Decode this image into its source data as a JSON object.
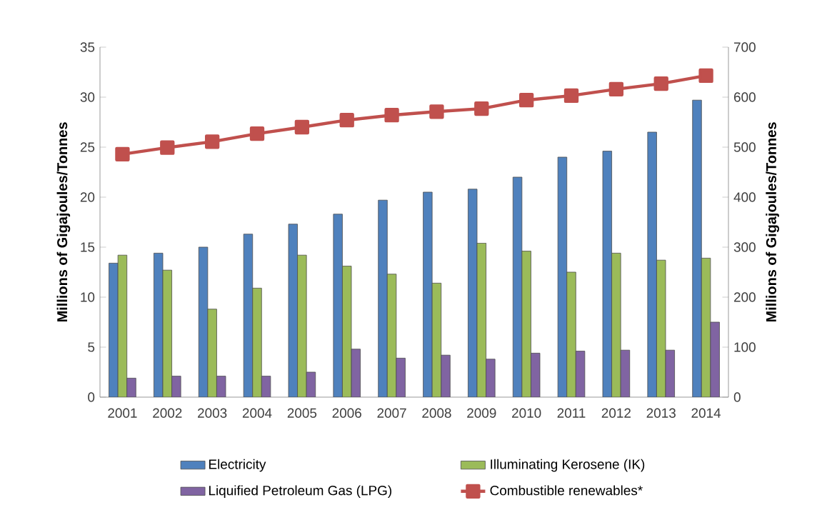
{
  "chart_data": {
    "type": "bar",
    "categories": [
      "2001",
      "2002",
      "2003",
      "2004",
      "2005",
      "2006",
      "2007",
      "2008",
      "2009",
      "2010",
      "2011",
      "2012",
      "2013",
      "2014"
    ],
    "ylabel": "Millions of Gigajoules/Tonnes",
    "y2label": "Millions of Gigajoules/Tonnes",
    "ylim": [
      0,
      35
    ],
    "yticks": [
      0,
      5,
      10,
      15,
      20,
      25,
      30,
      35
    ],
    "y2lim": [
      0,
      700
    ],
    "y2ticks": [
      0,
      100,
      200,
      300,
      400,
      500,
      600,
      700
    ],
    "series": [
      {
        "name": "Electricity",
        "color": "#4f81bd",
        "values": [
          13.4,
          14.4,
          15.0,
          16.3,
          17.3,
          18.3,
          19.7,
          20.5,
          20.8,
          22.0,
          24.0,
          24.6,
          26.5,
          29.7
        ]
      },
      {
        "name": "Illuminating Kerosene (IK)",
        "color": "#9bbb59",
        "values": [
          14.2,
          12.7,
          8.8,
          10.9,
          14.2,
          13.1,
          12.3,
          11.4,
          15.4,
          14.6,
          12.5,
          14.4,
          13.7,
          13.9
        ]
      },
      {
        "name": "Liquified Petroleum Gas (LPG)",
        "color": "#8064a2",
        "values": [
          1.9,
          2.1,
          2.1,
          2.1,
          2.5,
          4.8,
          3.9,
          4.2,
          3.8,
          4.4,
          4.6,
          4.7,
          4.7,
          7.5
        ]
      },
      {
        "name": "Combustible renewables*",
        "type": "line",
        "axis": "y2",
        "color": "#c0504d",
        "values": [
          486,
          499,
          511,
          527,
          540,
          554,
          564,
          571,
          577,
          594,
          603,
          616,
          627,
          643
        ]
      }
    ],
    "marker": "square",
    "line_style": "solid",
    "legend": "bottom",
    "grid": false
  }
}
